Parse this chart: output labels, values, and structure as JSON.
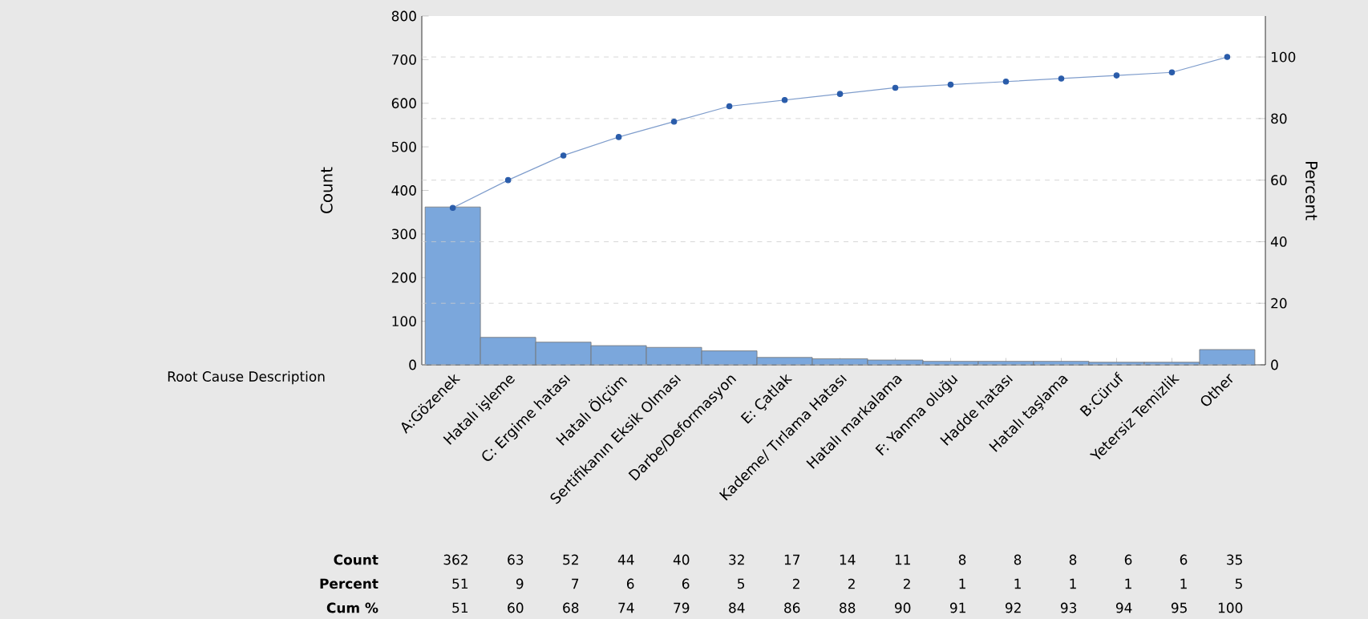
{
  "chart_data": {
    "type": "bar",
    "xlabel": "Root Cause Description",
    "ylabel": "Count",
    "y2label": "Percent",
    "categories": [
      "A:Gözenek",
      "Hatalı işleme",
      "C: Ergime hatası",
      "Hatalı Ölçüm",
      "Sertifikanın Eksik Olması",
      "Darbe/Deformasyon",
      "E: Çatlak",
      "Kademe/ Tırlama Hatası",
      "Hatalı markalama",
      "F: Yanma oluğu",
      "Hadde hatası",
      "Hatalı taşlama",
      "B:Cüruf",
      "Yetersiz Temizlik",
      "Other"
    ],
    "series": [
      {
        "color": "#7ba7dc",
        "values": [
          362,
          63,
          52,
          44,
          40,
          32,
          17,
          14,
          11,
          8,
          8,
          8,
          6,
          6,
          35
        ]
      },
      {
        "type": "line",
        "axis": "y2",
        "color": "#2a5caa",
        "marker": "circle",
        "values": [
          51,
          60,
          68,
          74,
          79,
          84,
          86,
          88,
          90,
          91,
          92,
          93,
          94,
          95,
          100
        ]
      }
    ],
    "data_labels": true,
    "ylim": [
      0,
      800
    ],
    "yticks": [
      0,
      100,
      200,
      300,
      400,
      500,
      600,
      700,
      800
    ],
    "y2lim": [
      0,
      113.3
    ],
    "y2ticks": [
      0,
      20,
      40,
      60,
      80,
      100
    ],
    "grid": "y",
    "annotations": [
      "Count",
      "Percent",
      "Cum %",
      "51",
      "9",
      "7",
      "6",
      "6",
      "5",
      "2",
      "2",
      "2",
      "1",
      "1",
      "1",
      "1",
      "1",
      "5"
    ]
  }
}
